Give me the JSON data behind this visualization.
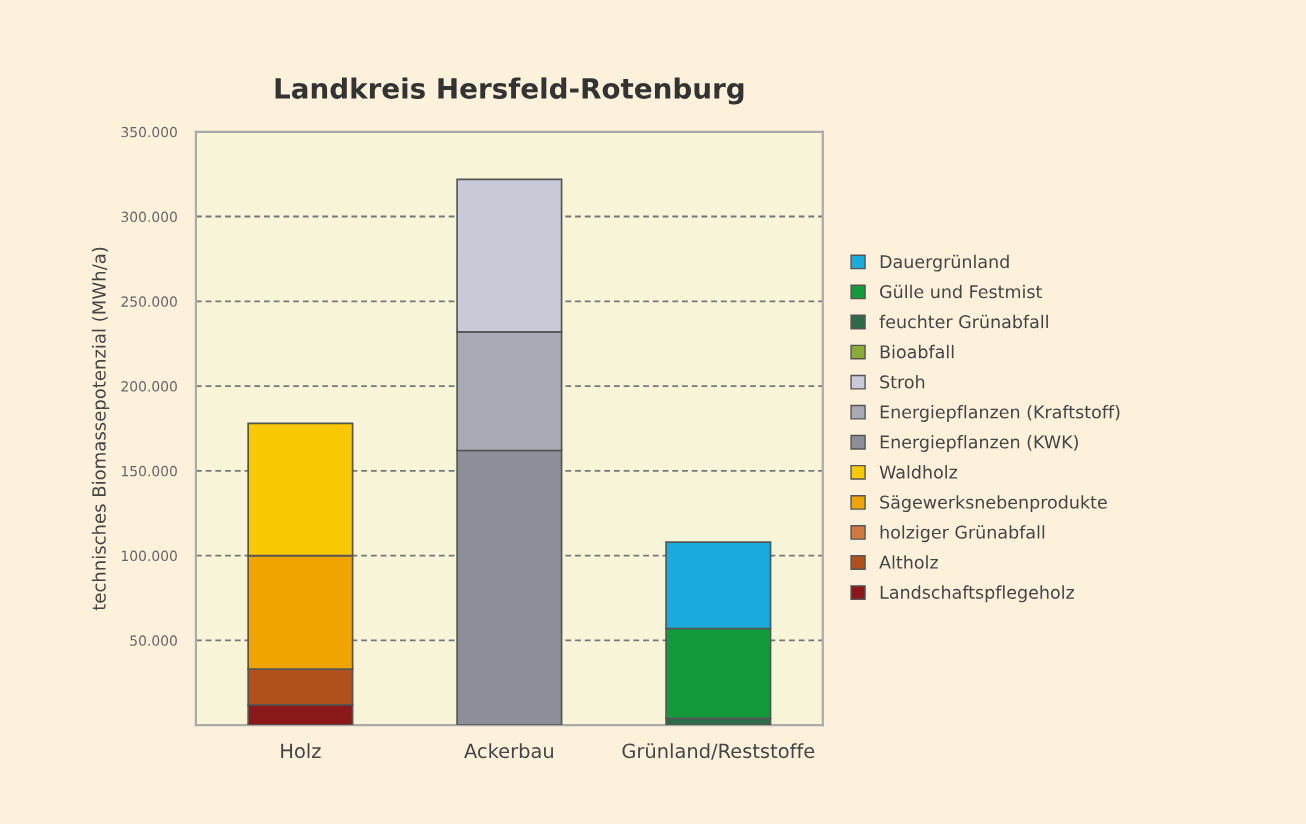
{
  "chart_data": {
    "type": "bar",
    "stacked": true,
    "title": "Landkreis Hersfeld-Rotenburg",
    "ylabel": "technisches Biomassepotenzial (MWh/a)",
    "categories": [
      "Holz",
      "Ackerbau",
      "Grünland/Reststoffe"
    ],
    "series": [
      {
        "name": "Landschaftspflegeholz",
        "color": "#8a1a1a",
        "values": [
          12000,
          0,
          0
        ]
      },
      {
        "name": "Altholz",
        "color": "#b0501c",
        "values": [
          21000,
          0,
          0
        ]
      },
      {
        "name": "holziger Grünabfall",
        "color": "#d07a40",
        "values": [
          0,
          0,
          0
        ]
      },
      {
        "name": "Sägewerksnebenprodukte",
        "color": "#f0a400",
        "values": [
          67000,
          0,
          0
        ]
      },
      {
        "name": "Waldholz",
        "color": "#f8c800",
        "values": [
          78000,
          0,
          0
        ]
      },
      {
        "name": "Energiepflanzen (KWK)",
        "color": "#8c8e98",
        "values": [
          0,
          162000,
          0
        ]
      },
      {
        "name": "Energiepflanzen (Kraftstoff)",
        "color": "#a8aab4",
        "values": [
          0,
          70000,
          0
        ]
      },
      {
        "name": "Stroh",
        "color": "#c8cad8",
        "values": [
          0,
          90000,
          0
        ]
      },
      {
        "name": "Bioabfall",
        "color": "#8aaa3a",
        "values": [
          0,
          0,
          0
        ]
      },
      {
        "name": "feuchter Grünabfall",
        "color": "#2e6a4a",
        "values": [
          0,
          0,
          4000
        ]
      },
      {
        "name": "Gülle und Festmist",
        "color": "#139a3a",
        "values": [
          0,
          0,
          53000
        ]
      },
      {
        "name": "Dauergrünland",
        "color": "#1aaadc",
        "values": [
          0,
          0,
          51000
        ]
      }
    ],
    "ylim": [
      0,
      350000
    ],
    "yticks": [
      {
        "value": 0,
        "label": null
      },
      {
        "value": 50000,
        "label": "50.000"
      },
      {
        "value": 100000,
        "label": "100.000"
      },
      {
        "value": 150000,
        "label": "150.000"
      },
      {
        "value": 200000,
        "label": "200.000"
      },
      {
        "value": 250000,
        "label": "250.000"
      },
      {
        "value": 300000,
        "label": "300.000"
      },
      {
        "value": 350000,
        "label": "350.000"
      }
    ],
    "grid": "y",
    "legend": "right"
  }
}
